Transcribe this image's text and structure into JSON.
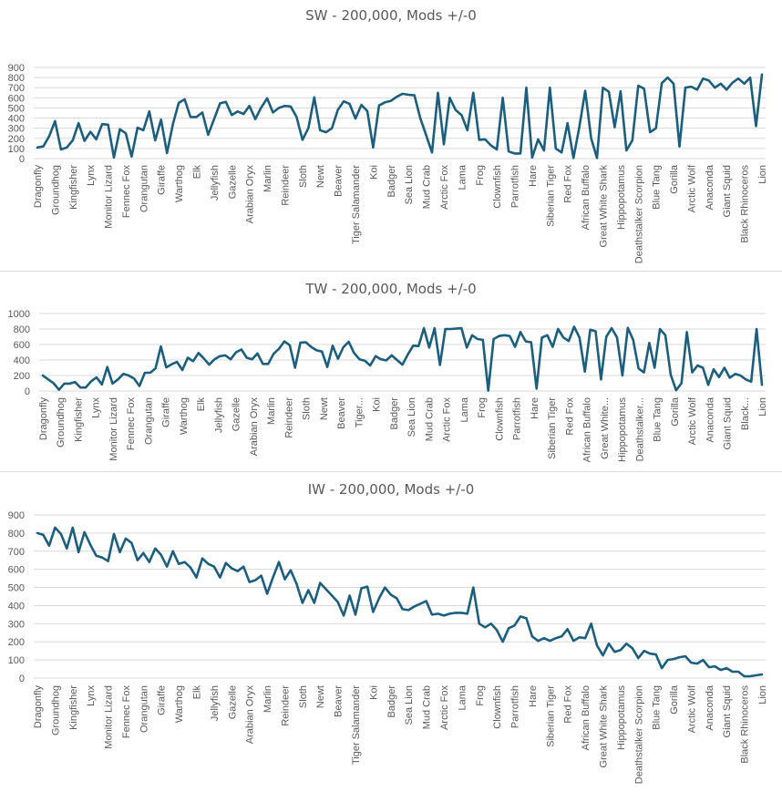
{
  "chart_data": [
    {
      "type": "line",
      "title": "SW - 200,000, Mods +/-0",
      "xlabel": "",
      "ylabel": "",
      "ylim": [
        0,
        900
      ],
      "yticks": [
        0,
        100,
        200,
        300,
        400,
        500,
        600,
        700,
        800,
        900
      ],
      "grid": true,
      "legend": "none",
      "tick_labels": [
        "Dragonfly",
        "Groundhog",
        "Kingfisher",
        "Lynx",
        "Monitor Lizard",
        "Fennec Fox",
        "Orangutan",
        "Giraffe",
        "Warthog",
        "Elk",
        "Jellyfish",
        "Gazelle",
        "Arabian Oryx",
        "Marlin",
        "Reindeer",
        "Sloth",
        "Newt",
        "Beaver",
        "Tiger Salamander",
        "Koi",
        "Badger",
        "Sea Lion",
        "Mud Crab",
        "Arctic Fox",
        "Lama",
        "Frog",
        "Clownfish",
        "Parrotfish",
        "Hare",
        "Siberian Tiger",
        "Red Fox",
        "African Buffalo",
        "Great White Shark",
        "Hippopotamus",
        "Deathstalker Scorpion",
        "Blue Tang",
        "Gorilla",
        "Arctic Wolf",
        "Anaconda",
        "Giant Squid",
        "Black Rhinoceros",
        "Lion"
      ],
      "series": [
        {
          "name": "SW",
          "color": "#1b5e7e",
          "values": [
            110,
            120,
            220,
            370,
            90,
            110,
            180,
            350,
            175,
            265,
            190,
            340,
            335,
            10,
            290,
            250,
            20,
            305,
            280,
            465,
            180,
            385,
            55,
            340,
            550,
            585,
            410,
            410,
            455,
            235,
            390,
            545,
            560,
            430,
            465,
            440,
            520,
            390,
            505,
            595,
            455,
            500,
            520,
            515,
            410,
            185,
            300,
            605,
            280,
            260,
            300,
            480,
            565,
            540,
            395,
            530,
            470,
            110,
            525,
            555,
            570,
            610,
            640,
            630,
            625,
            400,
            230,
            60,
            650,
            140,
            600,
            480,
            430,
            280,
            650,
            185,
            190,
            130,
            90,
            600,
            70,
            50,
            50,
            700,
            10,
            190,
            80,
            700,
            100,
            60,
            350,
            5,
            310,
            670,
            200,
            5,
            700,
            660,
            310,
            665,
            80,
            180,
            720,
            690,
            260,
            300,
            745,
            800,
            740,
            120,
            700,
            710,
            680,
            790,
            770,
            700,
            740,
            680,
            750,
            790,
            740,
            800,
            320,
            830
          ]
        }
      ]
    },
    {
      "type": "line",
      "title": "TW - 200,000, Mods +/-0",
      "xlabel": "",
      "ylabel": "",
      "ylim": [
        0,
        1000
      ],
      "yticks": [
        0,
        200,
        400,
        600,
        800,
        1000
      ],
      "grid": true,
      "legend": "none",
      "tick_labels": [
        "Dragonfly",
        "Groundhog",
        "Kingfisher",
        "Lynx",
        "Monitor Lizard",
        "Fennec Fox",
        "Orangutan",
        "Giraffe",
        "Warthog",
        "Elk",
        "Jellyfish",
        "Gazelle",
        "Arabian Oryx",
        "Marlin",
        "Reindeer",
        "Sloth",
        "Newt",
        "Beaver",
        "Tiger...",
        "Koi",
        "Badger",
        "Sea Lion",
        "Mud Crab",
        "Arctic Fox",
        "Lama",
        "Frog",
        "Clownfish",
        "Parrotfish",
        "Hare",
        "Siberian Tiger",
        "Red Fox",
        "African Buffalo",
        "Great White...",
        "Hippopotamus",
        "Deathstalker...",
        "Blue Tang",
        "Gorilla",
        "Arctic Wolf",
        "Anaconda",
        "Giant Squid",
        "Black...",
        "Lion"
      ],
      "series": [
        {
          "name": "TW",
          "color": "#1b5e7e",
          "values": [
            200,
            150,
            100,
            15,
            95,
            95,
            115,
            45,
            45,
            125,
            175,
            85,
            310,
            95,
            150,
            220,
            200,
            160,
            65,
            235,
            235,
            290,
            575,
            305,
            345,
            375,
            270,
            430,
            385,
            490,
            420,
            340,
            410,
            450,
            460,
            410,
            500,
            535,
            430,
            410,
            485,
            350,
            350,
            480,
            545,
            640,
            590,
            300,
            625,
            630,
            570,
            525,
            510,
            310,
            585,
            415,
            565,
            635,
            490,
            410,
            390,
            330,
            450,
            410,
            395,
            460,
            400,
            340,
            470,
            585,
            580,
            810,
            560,
            810,
            335,
            800,
            800,
            805,
            810,
            560,
            720,
            670,
            660,
            5,
            670,
            710,
            720,
            710,
            570,
            760,
            640,
            630,
            30,
            690,
            720,
            570,
            800,
            690,
            645,
            830,
            690,
            250,
            790,
            770,
            150,
            700,
            810,
            690,
            200,
            815,
            660,
            290,
            240,
            620,
            300,
            800,
            720,
            210,
            10,
            100,
            760,
            240,
            330,
            300,
            80,
            280,
            180,
            300,
            170,
            220,
            200,
            150,
            120,
            800,
            80
          ]
        }
      ]
    },
    {
      "type": "line",
      "title": "IW - 200,000, Mods +/-0",
      "xlabel": "",
      "ylabel": "",
      "ylim": [
        0,
        900
      ],
      "yticks": [
        0,
        100,
        200,
        300,
        400,
        500,
        600,
        700,
        800,
        900
      ],
      "grid": true,
      "legend": "none",
      "tick_labels": [
        "Dragonfly",
        "Groundhog",
        "Kingfisher",
        "Lynx",
        "Monitor Lizard",
        "Fennec Fox",
        "Orangutan",
        "Giraffe",
        "Warthog",
        "Elk",
        "Jellyfish",
        "Gazelle",
        "Arabian Oryx",
        "Marlin",
        "Reindeer",
        "Sloth",
        "Newt",
        "Beaver",
        "Tiger Salamander",
        "Koi",
        "Badger",
        "Sea Lion",
        "Mud Crab",
        "Arctic Fox",
        "Lama",
        "Frog",
        "Clownfish",
        "Parrotfish",
        "Hare",
        "Siberian Tiger",
        "Red Fox",
        "African Buffalo",
        "Great White Shark",
        "Hippopotamus",
        "Deathstalker Scorpion",
        "Blue Tang",
        "Gorilla",
        "Arctic Wolf",
        "Anaconda",
        "Giant Squid",
        "Black Rhinoceros",
        "Lion"
      ],
      "series": [
        {
          "name": "IW",
          "color": "#1b5e7e",
          "values": [
            800,
            790,
            730,
            830,
            795,
            715,
            830,
            695,
            805,
            735,
            675,
            665,
            645,
            795,
            695,
            770,
            745,
            650,
            690,
            640,
            715,
            680,
            615,
            700,
            630,
            640,
            610,
            555,
            660,
            630,
            615,
            555,
            635,
            605,
            590,
            615,
            530,
            540,
            565,
            465,
            555,
            640,
            545,
            595,
            520,
            415,
            485,
            415,
            525,
            490,
            455,
            420,
            345,
            455,
            350,
            495,
            505,
            365,
            440,
            500,
            460,
            440,
            380,
            375,
            395,
            410,
            425,
            350,
            355,
            345,
            355,
            360,
            360,
            355,
            500,
            300,
            280,
            300,
            265,
            200,
            275,
            290,
            340,
            330,
            230,
            205,
            220,
            205,
            220,
            230,
            270,
            205,
            225,
            220,
            300,
            180,
            125,
            190,
            145,
            155,
            190,
            165,
            110,
            150,
            135,
            130,
            55,
            100,
            105,
            115,
            120,
            85,
            80,
            100,
            60,
            65,
            45,
            55,
            35,
            35,
            10,
            10,
            15,
            20
          ]
        }
      ]
    }
  ]
}
